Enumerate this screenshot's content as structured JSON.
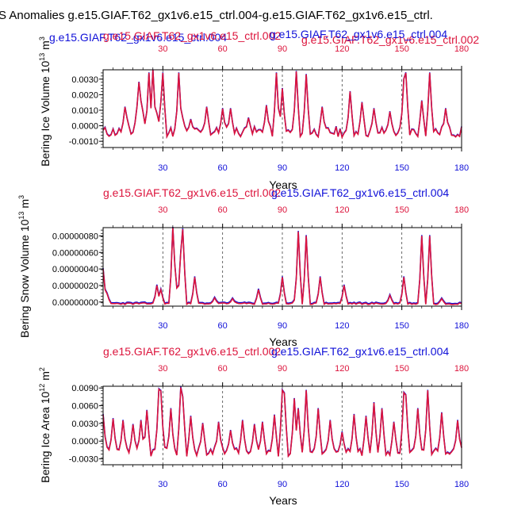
{
  "figure": {
    "main_title": "S Anomalies g.e15.GIAF.T62_gx1v6.e15_ctrl.004-g.e15.GIAF.T62_gx1v6.e15_ctrl.",
    "colors": {
      "blue_series": "#1010d8",
      "red_series": "#dc143c",
      "axis": "#000000",
      "dashed": "#444444"
    }
  },
  "chart_data": [
    {
      "type": "line",
      "case_label_red": "g.e15.GIAF.T62_gx1v6.e15_ctrl.002",
      "case_label_blue": "g.e15.GIAF.T62_gx1v6.e15_ctrl.004",
      "top_overlay_red": "g.e15.GIAF.T62_gx1v6.e15_ctrl.002",
      "xlabel": "Years",
      "ylabel_main": "Bering Ice Volume 10",
      "ylabel_exp": "13",
      "ylabel_unit": " m",
      "ylabel_unit_exp": "3",
      "xlim": [
        0,
        180
      ],
      "ylim": [
        -0.0014,
        0.0036
      ],
      "xticks": [
        30,
        60,
        90,
        120,
        150,
        180
      ],
      "xtick_labels": [
        "30",
        "60",
        "90",
        "120",
        "150",
        "180"
      ],
      "yticks": [
        -0.001,
        0.0,
        0.001,
        0.002,
        0.003
      ],
      "ytick_labels": [
        "-0.0010",
        "0.0000",
        "0.0010",
        "0.0020",
        "0.0030"
      ],
      "dashed_x": [
        30,
        60,
        90,
        120,
        150
      ],
      "spike_years": [
        10,
        11,
        12,
        17,
        18,
        19,
        20,
        23,
        25,
        27,
        29,
        30,
        38,
        40,
        44,
        52,
        60,
        64,
        73,
        82,
        87,
        90,
        97,
        102,
        110,
        124,
        130,
        136,
        144,
        151,
        152,
        160,
        164,
        172
      ],
      "spike_values": [
        -0.0004,
        0.0012,
        0.0005,
        0.0012,
        0.0028,
        0.0016,
        0.0009,
        0.0034,
        0.0036,
        0.0008,
        0.0015,
        0.0034,
        0.0034,
        0.0005,
        0.0004,
        0.0012,
        0.0011,
        0.0011,
        0.0005,
        0.0013,
        0.0034,
        0.0024,
        0.0035,
        0.0033,
        0.0012,
        0.0022,
        0.0015,
        0.0011,
        0.0009,
        0.003,
        0.0034,
        0.0016,
        0.0034,
        0.0011
      ],
      "baseline": -0.0004,
      "noise": 0.0007,
      "seed": 11,
      "blue_offset": 3e-05
    },
    {
      "type": "line",
      "case_label_red": "g.e15.GIAF.T62_gx1v6.e15_ctrl.002",
      "case_label_blue": "g.e15.GIAF.T62_gx1v6.e15_ctrl.004",
      "xlabel": "Years",
      "ylabel_main": "Bering Snow Volume 10",
      "ylabel_exp": "13",
      "ylabel_unit": " m",
      "ylabel_unit_exp": "3",
      "xlim": [
        0,
        180
      ],
      "ylim": [
        -5e-08,
        9e-07
      ],
      "xticks": [
        30,
        60,
        90,
        120,
        150,
        180
      ],
      "xtick_labels": [
        "30",
        "60",
        "90",
        "120",
        "150",
        "180"
      ],
      "yticks": [
        0.0,
        2e-07,
        4e-07,
        6e-07,
        8e-07
      ],
      "ytick_labels": [
        "0.00000000",
        "0.00000020",
        "0.00000040",
        "0.00000060",
        "0.00000080"
      ],
      "dashed_x": [
        30,
        60,
        90,
        120,
        150
      ],
      "spike_years": [
        0,
        2,
        27,
        29,
        35,
        36,
        39,
        40,
        46,
        56,
        65,
        78,
        90,
        97,
        98,
        102,
        109,
        121,
        144,
        151,
        160,
        164,
        170
      ],
      "spike_values": [
        4e-07,
        1e-07,
        2e-07,
        1.5e-07,
        9e-07,
        4.5e-07,
        6e-07,
        8.8e-07,
        3e-07,
        5e-08,
        4e-08,
        1.5e-07,
        3e-07,
        1e-07,
        8.5e-07,
        8e-07,
        3e-07,
        2e-07,
        8e-08,
        3e-07,
        8e-07,
        8e-07,
        4e-08
      ],
      "baseline": -2e-08,
      "noise": 2e-08,
      "seed": 23,
      "blue_offset": 1e-08
    },
    {
      "type": "line",
      "case_label_red": "g.e15.GIAF.T62_gx1v6.e15_ctrl.002",
      "case_label_blue": "g.e15.GIAF.T62_gx1v6.e15_ctrl.004",
      "xlabel": "Years",
      "ylabel_main": "Bering Ice Area 10",
      "ylabel_exp": "12",
      "ylabel_unit": " m",
      "ylabel_unit_exp": "2",
      "xlim": [
        0,
        180
      ],
      "ylim": [
        -0.004,
        0.0093
      ],
      "xticks": [
        30,
        60,
        90,
        120,
        150,
        180
      ],
      "xtick_labels": [
        "30",
        "60",
        "90",
        "120",
        "150",
        "180"
      ],
      "yticks": [
        -0.003,
        0.0,
        0.003,
        0.006,
        0.009
      ],
      "ytick_labels": [
        "-0.0030",
        "0.0000",
        "0.0030",
        "0.0060",
        "0.0090"
      ],
      "dashed_x": [
        30,
        60,
        90,
        120,
        150
      ],
      "spike_years": [
        0,
        5,
        10,
        15,
        19,
        22,
        28,
        29,
        34,
        39,
        40,
        44,
        50,
        58,
        64,
        70,
        76,
        80,
        86,
        90,
        91,
        96,
        98,
        102,
        108,
        114,
        120,
        126,
        132,
        136,
        140,
        146,
        151,
        152,
        158,
        163,
        170,
        178
      ],
      "spike_values": [
        0.0045,
        0.0038,
        0.0035,
        0.0028,
        0.0035,
        0.0052,
        0.0088,
        0.0085,
        0.0055,
        0.0091,
        0.0075,
        0.0042,
        0.003,
        0.0032,
        0.0018,
        0.0035,
        0.0028,
        0.0032,
        0.0044,
        0.0086,
        0.0081,
        0.0072,
        0.0055,
        0.0086,
        0.0055,
        0.0035,
        0.0015,
        0.0045,
        0.0042,
        0.0065,
        0.0055,
        0.0032,
        0.0082,
        0.0078,
        0.0055,
        0.0086,
        0.0048,
        0.0035
      ],
      "baseline": -0.0018,
      "noise": 0.0016,
      "seed": 37,
      "blue_offset": 0.0001
    }
  ]
}
